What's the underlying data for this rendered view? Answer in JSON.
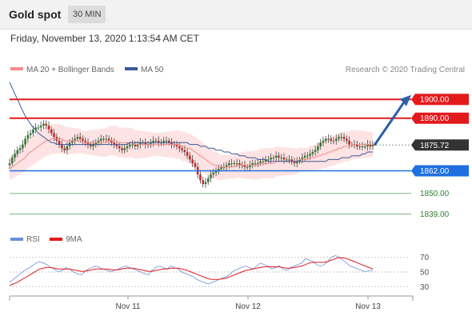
{
  "header": {
    "title": "Gold spot",
    "interval": "30 MIN"
  },
  "timestamp": "Friday, November 13, 2020 1:13:54 AM CET",
  "legend": {
    "ma20_label": "MA 20 + Bollinger Bands",
    "ma50_label": "MA 50",
    "credit": "Research © 2020 Trading Central"
  },
  "rsi_legend": {
    "rsi_label": "RSI",
    "ma_label": "9MA"
  },
  "colors": {
    "resistance": "#e31a1c",
    "support": "#1f6fe0",
    "minor_support": "#7cb87c",
    "price_tag": "#333333",
    "ma20": "#f28b8b",
    "ma50": "#3a5a9a",
    "bollinger_fill": "#fde3e3",
    "candle_up": "#2e7d32",
    "candle_down": "#c62828",
    "rsi": "#6b8fe0",
    "rsi_ma": "#e31a1c",
    "arrow": "#2e5fa8"
  },
  "chart_data": [
    {
      "type": "candlestick",
      "title": "Gold spot",
      "ylim": [
        1832,
        1912
      ],
      "x_ticks": [
        "Nov 11",
        "Nov 12",
        "Nov 13"
      ],
      "levels": [
        {
          "label": "1900.00",
          "value": 1900.0,
          "kind": "resistance"
        },
        {
          "label": "1890.00",
          "value": 1890.0,
          "kind": "resistance"
        },
        {
          "label": "1875.72",
          "value": 1875.72,
          "kind": "last-price"
        },
        {
          "label": "1862.00",
          "value": 1862.0,
          "kind": "support"
        },
        {
          "label": "1850.00",
          "value": 1850.0,
          "kind": "minor-support"
        },
        {
          "label": "1839.00",
          "value": 1839.0,
          "kind": "minor-support"
        }
      ],
      "close": [
        1866,
        1869,
        1871,
        1873,
        1874,
        1876,
        1879,
        1881,
        1882,
        1884,
        1885,
        1885,
        1886,
        1887,
        1886,
        1884,
        1882,
        1880,
        1878,
        1876,
        1874,
        1873,
        1875,
        1877,
        1878,
        1879,
        1880,
        1879,
        1878,
        1877,
        1876,
        1875,
        1876,
        1877,
        1878,
        1879,
        1879,
        1879,
        1878,
        1877,
        1876,
        1875,
        1874,
        1873,
        1874,
        1875,
        1876,
        1876,
        1875,
        1876,
        1877,
        1877,
        1876,
        1876,
        1877,
        1878,
        1878,
        1877,
        1877,
        1878,
        1878,
        1877,
        1876,
        1876,
        1875,
        1874,
        1873,
        1872,
        1870,
        1868,
        1866,
        1864,
        1860,
        1857,
        1855,
        1856,
        1858,
        1860,
        1861,
        1862,
        1863,
        1864,
        1864,
        1865,
        1866,
        1866,
        1866,
        1866,
        1865,
        1865,
        1864,
        1864,
        1865,
        1866,
        1866,
        1866,
        1867,
        1867,
        1868,
        1868,
        1869,
        1869,
        1870,
        1869,
        1869,
        1868,
        1868,
        1868,
        1867,
        1866,
        1867,
        1868,
        1869,
        1870,
        1870,
        1871,
        1872,
        1873,
        1875,
        1877,
        1878,
        1879,
        1879,
        1878,
        1878,
        1879,
        1880,
        1880,
        1879,
        1878,
        1876,
        1876,
        1876,
        1875,
        1875,
        1875,
        1875,
        1876,
        1875,
        1876
      ],
      "ma20": [
        1863,
        1864,
        1865,
        1866,
        1867,
        1868,
        1869,
        1871,
        1872,
        1873,
        1874,
        1875,
        1876,
        1877,
        1878,
        1878,
        1879,
        1879,
        1879,
        1879,
        1879,
        1878,
        1878,
        1878,
        1878,
        1878,
        1878,
        1878,
        1877,
        1877,
        1877,
        1877,
        1877,
        1877,
        1877,
        1877,
        1877,
        1877,
        1878,
        1878,
        1878,
        1878,
        1877,
        1877,
        1877,
        1877,
        1877,
        1877,
        1876,
        1876,
        1876,
        1876,
        1876,
        1876,
        1876,
        1876,
        1876,
        1876,
        1876,
        1876,
        1876,
        1876,
        1876,
        1876,
        1876,
        1876,
        1875,
        1875,
        1874,
        1874,
        1873,
        1872,
        1871,
        1870,
        1869,
        1868,
        1867,
        1866,
        1865,
        1865,
        1864,
        1864,
        1864,
        1864,
        1864,
        1864,
        1864,
        1865,
        1865,
        1865,
        1865,
        1865,
        1865,
        1865,
        1865,
        1865,
        1866,
        1866,
        1866,
        1866,
        1866,
        1866,
        1867,
        1867,
        1867,
        1867,
        1867,
        1867,
        1867,
        1867,
        1867,
        1868,
        1868,
        1868,
        1868,
        1869,
        1869,
        1869,
        1870,
        1870,
        1871,
        1871,
        1872,
        1872,
        1873,
        1873,
        1874,
        1874,
        1875,
        1875,
        1875,
        1876,
        1876,
        1876,
        1876,
        1876,
        1876,
        1876,
        1876,
        1876
      ],
      "ma50": [
        1909,
        1906,
        1903,
        1900,
        1897,
        1894,
        1891,
        1889,
        1887,
        1885,
        1884,
        1882,
        1881,
        1880,
        1879,
        1878,
        1877,
        1877,
        1876,
        1876,
        1876,
        1876,
        1876,
        1876,
        1876,
        1876,
        1876,
        1876,
        1876,
        1876,
        1876,
        1876,
        1876,
        1876,
        1876,
        1876,
        1876,
        1876,
        1876,
        1876,
        1876,
        1876,
        1876,
        1876,
        1876,
        1876,
        1877,
        1877,
        1877,
        1877,
        1877,
        1877,
        1877,
        1877,
        1877,
        1877,
        1877,
        1877,
        1877,
        1877,
        1877,
        1877,
        1877,
        1877,
        1877,
        1877,
        1877,
        1877,
        1877,
        1876,
        1876,
        1876,
        1876,
        1875,
        1875,
        1875,
        1874,
        1874,
        1874,
        1873,
        1873,
        1873,
        1872,
        1872,
        1872,
        1871,
        1871,
        1871,
        1870,
        1870,
        1870,
        1869,
        1869,
        1869,
        1869,
        1868,
        1868,
        1868,
        1868,
        1867,
        1867,
        1867,
        1867,
        1867,
        1867,
        1867,
        1867,
        1867,
        1867,
        1867,
        1867,
        1867,
        1867,
        1867,
        1867,
        1867,
        1867,
        1867,
        1867,
        1867,
        1867,
        1867,
        1868,
        1868,
        1868,
        1868,
        1868,
        1869,
        1869,
        1869,
        1869,
        1870,
        1870,
        1870,
        1870,
        1871,
        1871,
        1872,
        1872,
        1872
      ]
    },
    {
      "type": "line",
      "ylim": [
        20,
        80
      ],
      "y_ticks": [
        70,
        50,
        30
      ],
      "series": [
        {
          "name": "RSI",
          "values": [
            36,
            40,
            44,
            48,
            52,
            55,
            58,
            62,
            64,
            62,
            60,
            56,
            54,
            50,
            52,
            56,
            54,
            50,
            48,
            46,
            50,
            54,
            56,
            58,
            56,
            54,
            52,
            50,
            52,
            54,
            56,
            58,
            56,
            54,
            52,
            50,
            48,
            46,
            52,
            56,
            58,
            56,
            54,
            58,
            56,
            54,
            50,
            48,
            46,
            44,
            40,
            38,
            36,
            34,
            36,
            38,
            40,
            42,
            44,
            48,
            52,
            54,
            56,
            58,
            56,
            54,
            58,
            62,
            60,
            58,
            54,
            56,
            58,
            54,
            52,
            56,
            58,
            60,
            62,
            68,
            66,
            64,
            60,
            58,
            60,
            64,
            70,
            72,
            70,
            66,
            62,
            58,
            56,
            54,
            52,
            50,
            52,
            52
          ]
        },
        {
          "name": "9MA",
          "values": [
            32,
            34,
            36,
            39,
            42,
            45,
            48,
            51,
            54,
            55,
            56,
            56,
            55,
            54,
            54,
            54,
            54,
            53,
            52,
            51,
            51,
            52,
            53,
            54,
            54,
            54,
            54,
            53,
            53,
            53,
            54,
            55,
            55,
            55,
            54,
            53,
            52,
            51,
            51,
            52,
            53,
            54,
            54,
            55,
            55,
            55,
            54,
            53,
            51,
            49,
            47,
            45,
            43,
            41,
            40,
            40,
            40,
            41,
            42,
            44,
            46,
            48,
            50,
            52,
            53,
            54,
            55,
            56,
            57,
            57,
            57,
            57,
            57,
            56,
            55,
            55,
            56,
            57,
            58,
            60,
            62,
            63,
            63,
            63,
            63,
            64,
            66,
            68,
            69,
            69,
            68,
            66,
            64,
            62,
            60,
            58,
            56,
            54
          ]
        }
      ]
    }
  ]
}
